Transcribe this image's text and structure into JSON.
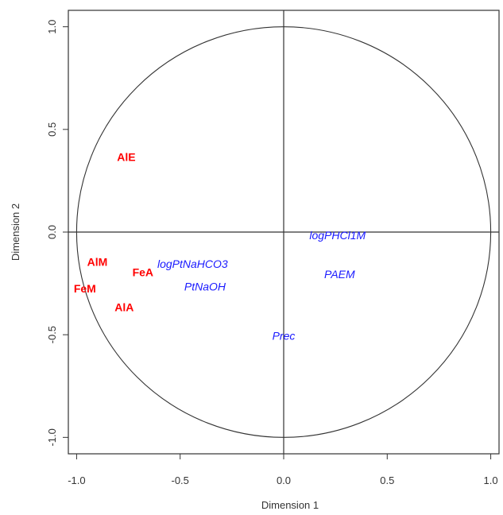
{
  "chart_data": {
    "type": "scatter",
    "title": "",
    "xlabel": "Dimension 1",
    "ylabel": "Dimension 2",
    "xlim": [
      -1.04,
      1.04
    ],
    "ylim": [
      -1.08,
      1.08
    ],
    "x_ticks": [
      {
        "value": -1.0,
        "label": "-1.0"
      },
      {
        "value": -0.5,
        "label": "-0.5"
      },
      {
        "value": 0.0,
        "label": "0.0"
      },
      {
        "value": 0.5,
        "label": "0.5"
      },
      {
        "value": 1.0,
        "label": "1.0"
      }
    ],
    "y_ticks": [
      {
        "value": -1.0,
        "label": "-1.0"
      },
      {
        "value": -0.5,
        "label": "-0.5"
      },
      {
        "value": 0.0,
        "label": "0.0"
      },
      {
        "value": 0.5,
        "label": "0.5"
      },
      {
        "value": 1.0,
        "label": "1.0"
      }
    ],
    "unit_circle": true,
    "reference_lines": {
      "x": 0,
      "y": 0
    },
    "grid": false,
    "series": [
      {
        "color": "#ff0000",
        "style": "bold",
        "points": [
          {
            "label": "AlE",
            "x": -0.76,
            "y": 0.36
          },
          {
            "label": "AlM",
            "x": -0.9,
            "y": -0.15
          },
          {
            "label": "FeA",
            "x": -0.68,
            "y": -0.2
          },
          {
            "label": "FeM",
            "x": -0.96,
            "y": -0.28
          },
          {
            "label": "AlA",
            "x": -0.77,
            "y": -0.37
          }
        ]
      },
      {
        "color": "#1a1aff",
        "style": "italic",
        "points": [
          {
            "label": "logPHCl1M",
            "x": 0.26,
            "y": -0.02
          },
          {
            "label": "logPtNaHCO3",
            "x": -0.44,
            "y": -0.16
          },
          {
            "label": "PtNaOH",
            "x": -0.38,
            "y": -0.27
          },
          {
            "label": "PAEM",
            "x": 0.27,
            "y": -0.21
          },
          {
            "label": "Prec",
            "x": 0.0,
            "y": -0.51
          }
        ]
      }
    ]
  }
}
